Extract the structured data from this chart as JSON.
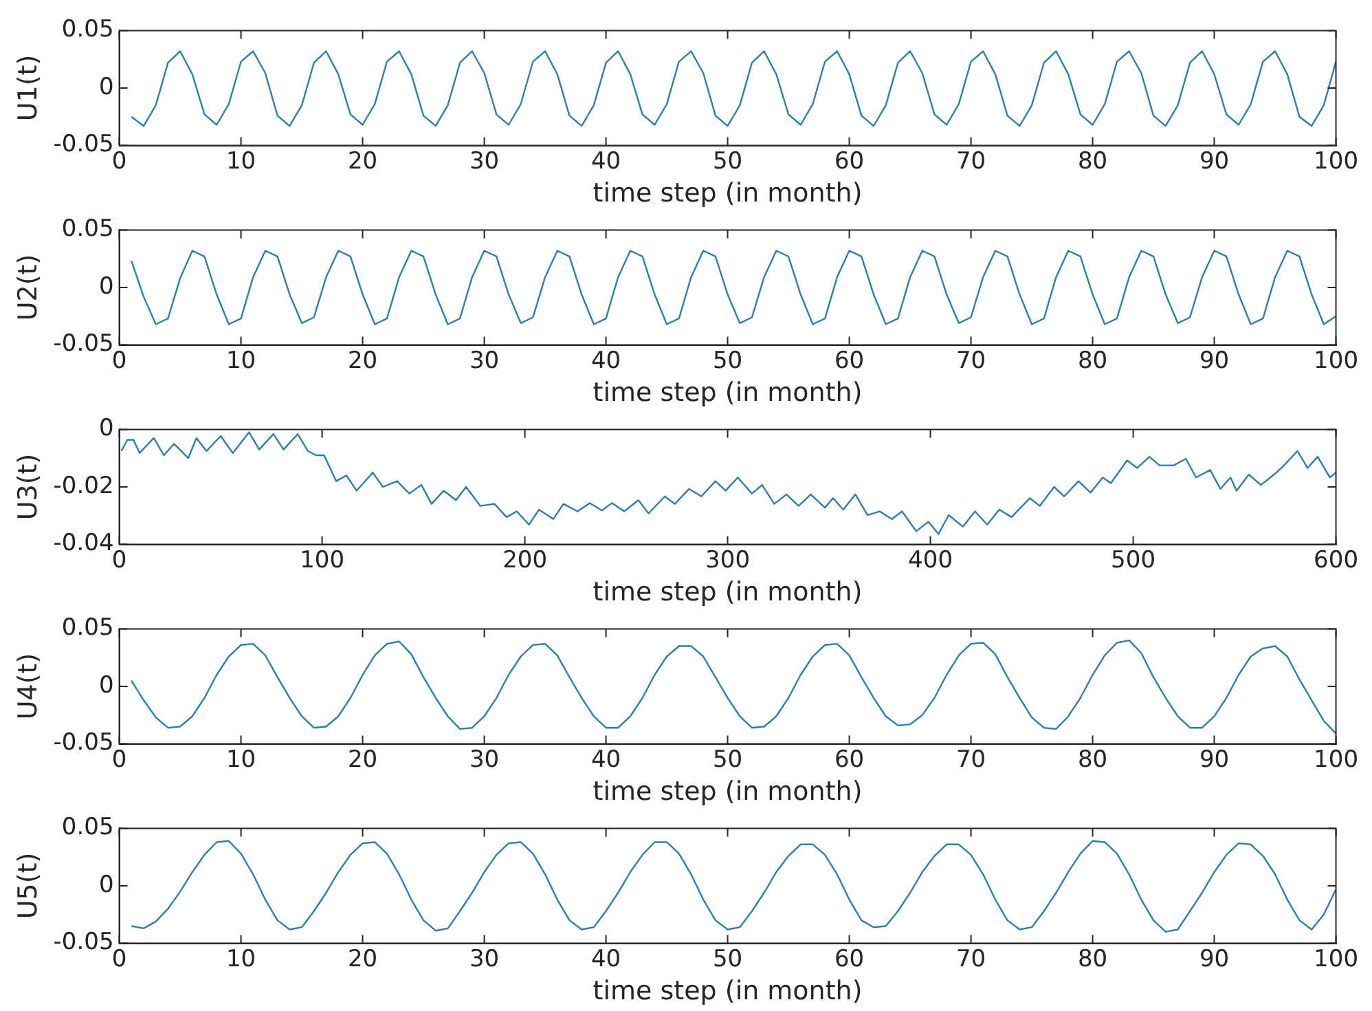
{
  "chart_data": [
    {
      "type": "line",
      "xlabel": "time step (in month)",
      "ylabel": "U1(t)",
      "xlim": [
        0,
        100
      ],
      "xticks": [
        0,
        10,
        20,
        30,
        40,
        50,
        60,
        70,
        80,
        90,
        100
      ],
      "ylim": [
        -0.05,
        0.05
      ],
      "yticks": [
        -0.05,
        0,
        0.05
      ],
      "grid": false,
      "legend": false,
      "x": [
        1,
        2,
        3,
        4,
        5,
        6,
        7,
        8,
        9,
        10,
        11,
        12,
        13,
        14,
        15,
        16,
        17,
        18,
        19,
        20,
        21,
        22,
        23,
        24,
        25,
        26,
        27,
        28,
        29,
        30,
        31,
        32,
        33,
        34,
        35,
        36,
        37,
        38,
        39,
        40,
        41,
        42,
        43,
        44,
        45,
        46,
        47,
        48,
        49,
        50,
        51,
        52,
        53,
        54,
        55,
        56,
        57,
        58,
        59,
        60,
        61,
        62,
        63,
        64,
        65,
        66,
        67,
        68,
        69,
        70,
        71,
        72,
        73,
        74,
        75,
        76,
        77,
        78,
        79,
        80,
        81,
        82,
        83,
        84,
        85,
        86,
        87,
        88,
        89,
        90,
        91,
        92,
        93,
        94,
        95,
        96,
        97,
        98,
        99,
        100
      ],
      "series": [
        {
          "color": "#2f7fab",
          "values": [
            -0.025,
            -0.033,
            -0.015,
            0.022,
            0.032,
            0.012,
            -0.023,
            -0.032,
            -0.014,
            0.023,
            0.032,
            0.013,
            -0.024,
            -0.033,
            -0.015,
            0.022,
            0.032,
            0.012,
            -0.023,
            -0.032,
            -0.014,
            0.023,
            0.032,
            0.012,
            -0.024,
            -0.033,
            -0.015,
            0.022,
            0.032,
            0.013,
            -0.023,
            -0.032,
            -0.014,
            0.023,
            0.032,
            0.012,
            -0.024,
            -0.033,
            -0.015,
            0.022,
            0.032,
            0.012,
            -0.023,
            -0.032,
            -0.014,
            0.023,
            0.032,
            0.013,
            -0.024,
            -0.033,
            -0.015,
            0.022,
            0.032,
            0.012,
            -0.023,
            -0.032,
            -0.014,
            0.023,
            0.032,
            0.012,
            -0.024,
            -0.033,
            -0.015,
            0.022,
            0.032,
            0.013,
            -0.023,
            -0.032,
            -0.014,
            0.023,
            0.032,
            0.012,
            -0.024,
            -0.033,
            -0.015,
            0.022,
            0.032,
            0.012,
            -0.023,
            -0.032,
            -0.014,
            0.023,
            0.032,
            0.013,
            -0.024,
            -0.033,
            -0.015,
            0.022,
            0.032,
            0.012,
            -0.023,
            -0.032,
            -0.014,
            0.023,
            0.032,
            0.012,
            -0.025,
            -0.033,
            -0.015,
            0.023
          ]
        }
      ]
    },
    {
      "type": "line",
      "xlabel": "time step (in month)",
      "ylabel": "U2(t)",
      "xlim": [
        0,
        100
      ],
      "xticks": [
        0,
        10,
        20,
        30,
        40,
        50,
        60,
        70,
        80,
        90,
        100
      ],
      "ylim": [
        -0.05,
        0.05
      ],
      "yticks": [
        -0.05,
        0,
        0.05
      ],
      "grid": false,
      "legend": false,
      "x": [
        1,
        2,
        3,
        4,
        5,
        6,
        7,
        8,
        9,
        10,
        11,
        12,
        13,
        14,
        15,
        16,
        17,
        18,
        19,
        20,
        21,
        22,
        23,
        24,
        25,
        26,
        27,
        28,
        29,
        30,
        31,
        32,
        33,
        34,
        35,
        36,
        37,
        38,
        39,
        40,
        41,
        42,
        43,
        44,
        45,
        46,
        47,
        48,
        49,
        50,
        51,
        52,
        53,
        54,
        55,
        56,
        57,
        58,
        59,
        60,
        61,
        62,
        63,
        64,
        65,
        66,
        67,
        68,
        69,
        70,
        71,
        72,
        73,
        74,
        75,
        76,
        77,
        78,
        79,
        80,
        81,
        82,
        83,
        84,
        85,
        86,
        87,
        88,
        89,
        90,
        91,
        92,
        93,
        94,
        95,
        96,
        97,
        98,
        99,
        100
      ],
      "series": [
        {
          "color": "#2f7fab",
          "values": [
            0.023,
            -0.008,
            -0.032,
            -0.027,
            0.008,
            0.032,
            0.027,
            -0.006,
            -0.032,
            -0.027,
            0.009,
            0.032,
            0.027,
            -0.006,
            -0.031,
            -0.026,
            0.009,
            0.032,
            0.027,
            -0.006,
            -0.032,
            -0.027,
            0.009,
            0.032,
            0.027,
            -0.006,
            -0.032,
            -0.027,
            0.009,
            0.032,
            0.027,
            -0.006,
            -0.031,
            -0.026,
            0.009,
            0.032,
            0.027,
            -0.006,
            -0.032,
            -0.027,
            0.009,
            0.032,
            0.027,
            -0.006,
            -0.032,
            -0.027,
            0.009,
            0.032,
            0.027,
            -0.006,
            -0.031,
            -0.026,
            0.009,
            0.032,
            0.027,
            -0.006,
            -0.032,
            -0.027,
            0.009,
            0.032,
            0.027,
            -0.006,
            -0.032,
            -0.027,
            0.009,
            0.032,
            0.027,
            -0.006,
            -0.031,
            -0.026,
            0.009,
            0.032,
            0.027,
            -0.006,
            -0.032,
            -0.027,
            0.009,
            0.032,
            0.027,
            -0.006,
            -0.032,
            -0.027,
            0.009,
            0.032,
            0.027,
            -0.006,
            -0.031,
            -0.026,
            0.009,
            0.032,
            0.027,
            -0.006,
            -0.032,
            -0.027,
            0.009,
            0.032,
            0.027,
            -0.006,
            -0.032,
            -0.025
          ]
        }
      ]
    },
    {
      "type": "line",
      "xlabel": "time step (in month)",
      "ylabel": "U3(t)",
      "xlim": [
        0,
        600
      ],
      "xticks": [
        0,
        100,
        200,
        300,
        400,
        500,
        600
      ],
      "ylim": [
        -0.04,
        0
      ],
      "yticks": [
        -0.04,
        -0.02,
        0
      ],
      "grid": false,
      "legend": false,
      "x": [
        1,
        4,
        7,
        10,
        17,
        22,
        27,
        34,
        38,
        43,
        50,
        56,
        64,
        69,
        76,
        81,
        88,
        93,
        97,
        101,
        107,
        112,
        117,
        125,
        130,
        137,
        143,
        149,
        154,
        160,
        166,
        171,
        178,
        185,
        191,
        196,
        202,
        207,
        214,
        219,
        226,
        232,
        238,
        243,
        249,
        256,
        261,
        269,
        274,
        281,
        287,
        294,
        299,
        305,
        312,
        317,
        323,
        329,
        335,
        341,
        348,
        352,
        357,
        363,
        369,
        375,
        381,
        386,
        393,
        399,
        404,
        409,
        416,
        422,
        428,
        434,
        440,
        449,
        454,
        461,
        466,
        473,
        479,
        485,
        489,
        497,
        502,
        508,
        513,
        520,
        526,
        531,
        538,
        543,
        548,
        551,
        557,
        563,
        570,
        574,
        581,
        586,
        591,
        597,
        600
      ],
      "series": [
        {
          "color": "#2f7fab",
          "values": [
            -0.0075,
            -0.0036,
            -0.0036,
            -0.0082,
            -0.003,
            -0.009,
            -0.005,
            -0.01,
            -0.003,
            -0.0075,
            -0.0023,
            -0.0082,
            -0.001,
            -0.007,
            -0.0016,
            -0.007,
            -0.0016,
            -0.0075,
            -0.009,
            -0.009,
            -0.018,
            -0.016,
            -0.0213,
            -0.015,
            -0.02,
            -0.018,
            -0.0223,
            -0.0193,
            -0.0259,
            -0.0213,
            -0.0246,
            -0.02,
            -0.0266,
            -0.0259,
            -0.0305,
            -0.0285,
            -0.0331,
            -0.0279,
            -0.0312,
            -0.0259,
            -0.0285,
            -0.0256,
            -0.0282,
            -0.0256,
            -0.0285,
            -0.0246,
            -0.0292,
            -0.0233,
            -0.0259,
            -0.0207,
            -0.0233,
            -0.018,
            -0.0213,
            -0.0167,
            -0.0223,
            -0.0193,
            -0.0259,
            -0.0226,
            -0.0266,
            -0.0226,
            -0.0272,
            -0.0239,
            -0.0279,
            -0.0226,
            -0.0298,
            -0.0285,
            -0.0312,
            -0.0285,
            -0.0354,
            -0.0321,
            -0.0364,
            -0.0298,
            -0.0338,
            -0.0285,
            -0.0331,
            -0.0279,
            -0.0305,
            -0.0239,
            -0.0266,
            -0.02,
            -0.0233,
            -0.018,
            -0.022,
            -0.0167,
            -0.0187,
            -0.0108,
            -0.0134,
            -0.0095,
            -0.0125,
            -0.0125,
            -0.0102,
            -0.0167,
            -0.0141,
            -0.0207,
            -0.0167,
            -0.0213,
            -0.0157,
            -0.0193,
            -0.0154,
            -0.0128,
            -0.0075,
            -0.0134,
            -0.0095,
            -0.0167,
            -0.015
          ]
        }
      ]
    },
    {
      "type": "line",
      "xlabel": "time step (in month)",
      "ylabel": "U4(t)",
      "xlim": [
        0,
        100
      ],
      "xticks": [
        0,
        10,
        20,
        30,
        40,
        50,
        60,
        70,
        80,
        90,
        100
      ],
      "ylim": [
        -0.05,
        0.05
      ],
      "yticks": [
        -0.05,
        0,
        0.05
      ],
      "grid": false,
      "legend": false,
      "x": [
        1,
        2,
        3,
        4,
        5,
        6,
        7,
        8,
        9,
        10,
        11,
        12,
        13,
        14,
        15,
        16,
        17,
        18,
        19,
        20,
        21,
        22,
        23,
        24,
        25,
        26,
        27,
        28,
        29,
        30,
        31,
        32,
        33,
        34,
        35,
        36,
        37,
        38,
        39,
        40,
        41,
        42,
        43,
        44,
        45,
        46,
        47,
        48,
        49,
        50,
        51,
        52,
        53,
        54,
        55,
        56,
        57,
        58,
        59,
        60,
        61,
        62,
        63,
        64,
        65,
        66,
        67,
        68,
        69,
        70,
        71,
        72,
        73,
        74,
        75,
        76,
        77,
        78,
        79,
        80,
        81,
        82,
        83,
        84,
        85,
        86,
        87,
        88,
        89,
        90,
        91,
        92,
        93,
        94,
        95,
        96,
        97,
        98,
        99,
        100
      ],
      "series": [
        {
          "color": "#2f7fab",
          "values": [
            0.005,
            -0.012,
            -0.027,
            -0.036,
            -0.035,
            -0.026,
            -0.01,
            0.01,
            0.026,
            0.036,
            0.037,
            0.027,
            0.008,
            -0.01,
            -0.026,
            -0.036,
            -0.035,
            -0.026,
            -0.01,
            0.01,
            0.027,
            0.037,
            0.039,
            0.028,
            0.008,
            -0.01,
            -0.026,
            -0.037,
            -0.036,
            -0.026,
            -0.01,
            0.01,
            0.026,
            0.036,
            0.037,
            0.027,
            0.008,
            -0.01,
            -0.026,
            -0.036,
            -0.036,
            -0.026,
            -0.01,
            0.01,
            0.026,
            0.035,
            0.035,
            0.026,
            0.008,
            -0.01,
            -0.026,
            -0.036,
            -0.035,
            -0.026,
            -0.01,
            0.01,
            0.026,
            0.036,
            0.037,
            0.027,
            0.008,
            -0.01,
            -0.026,
            -0.034,
            -0.033,
            -0.025,
            -0.01,
            0.01,
            0.027,
            0.037,
            0.038,
            0.028,
            0.008,
            -0.01,
            -0.027,
            -0.036,
            -0.037,
            -0.026,
            -0.01,
            0.01,
            0.027,
            0.038,
            0.04,
            0.029,
            0.008,
            -0.01,
            -0.026,
            -0.036,
            -0.036,
            -0.026,
            -0.01,
            0.01,
            0.026,
            0.033,
            0.035,
            0.026,
            0.006,
            -0.012,
            -0.03,
            -0.041
          ]
        }
      ]
    },
    {
      "type": "line",
      "xlabel": "time step (in month)",
      "ylabel": "U5(t)",
      "xlim": [
        0,
        100
      ],
      "xticks": [
        0,
        10,
        20,
        30,
        40,
        50,
        60,
        70,
        80,
        90,
        100
      ],
      "ylim": [
        -0.05,
        0.05
      ],
      "yticks": [
        -0.05,
        0,
        0.05
      ],
      "grid": false,
      "legend": false,
      "x": [
        1,
        2,
        3,
        4,
        5,
        6,
        7,
        8,
        9,
        10,
        11,
        12,
        13,
        14,
        15,
        16,
        17,
        18,
        19,
        20,
        21,
        22,
        23,
        24,
        25,
        26,
        27,
        28,
        29,
        30,
        31,
        32,
        33,
        34,
        35,
        36,
        37,
        38,
        39,
        40,
        41,
        42,
        43,
        44,
        45,
        46,
        47,
        48,
        49,
        50,
        51,
        52,
        53,
        54,
        55,
        56,
        57,
        58,
        59,
        60,
        61,
        62,
        63,
        64,
        65,
        66,
        67,
        68,
        69,
        70,
        71,
        72,
        73,
        74,
        75,
        76,
        77,
        78,
        79,
        80,
        81,
        82,
        83,
        84,
        85,
        86,
        87,
        88,
        89,
        90,
        91,
        92,
        93,
        94,
        95,
        96,
        97,
        98,
        99,
        100
      ],
      "series": [
        {
          "color": "#2f7fab",
          "values": [
            -0.035,
            -0.037,
            -0.031,
            -0.02,
            -0.005,
            0.012,
            0.027,
            0.038,
            0.039,
            0.028,
            0.01,
            -0.012,
            -0.03,
            -0.038,
            -0.036,
            -0.022,
            -0.006,
            0.012,
            0.027,
            0.037,
            0.038,
            0.028,
            0.01,
            -0.012,
            -0.03,
            -0.039,
            -0.037,
            -0.022,
            -0.006,
            0.012,
            0.027,
            0.037,
            0.038,
            0.028,
            0.01,
            -0.012,
            -0.03,
            -0.038,
            -0.036,
            -0.022,
            -0.006,
            0.012,
            0.027,
            0.038,
            0.038,
            0.028,
            0.01,
            -0.012,
            -0.03,
            -0.038,
            -0.036,
            -0.022,
            -0.006,
            0.012,
            0.026,
            0.036,
            0.036,
            0.027,
            0.01,
            -0.012,
            -0.03,
            -0.036,
            -0.035,
            -0.022,
            -0.006,
            0.012,
            0.026,
            0.036,
            0.036,
            0.027,
            0.01,
            -0.012,
            -0.03,
            -0.038,
            -0.036,
            -0.022,
            -0.006,
            0.012,
            0.028,
            0.039,
            0.038,
            0.028,
            0.01,
            -0.012,
            -0.03,
            -0.04,
            -0.038,
            -0.022,
            -0.006,
            0.012,
            0.027,
            0.037,
            0.036,
            0.026,
            0.01,
            -0.012,
            -0.03,
            -0.038,
            -0.025,
            -0.003
          ]
        }
      ]
    }
  ]
}
